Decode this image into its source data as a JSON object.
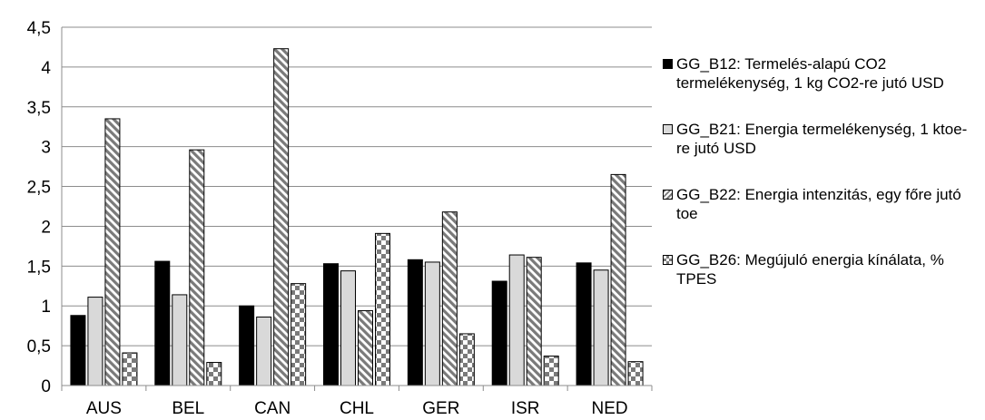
{
  "chart_data": {
    "type": "bar",
    "categories": [
      "AUS",
      "BEL",
      "CAN",
      "CHL",
      "GER",
      "ISR",
      "NED"
    ],
    "series": [
      {
        "name": "GG_B12: Termelés-alapú CO2 termelékenység, 1 kg CO2-re jutó USD",
        "values": [
          0.88,
          1.56,
          1.0,
          1.53,
          1.58,
          1.31,
          1.54
        ],
        "pattern": "solid",
        "color": "#000000"
      },
      {
        "name": "GG_B21: Energia termelékenység, 1 ktoe-re jutó USD",
        "values": [
          1.11,
          1.14,
          0.86,
          1.44,
          1.55,
          1.64,
          1.45
        ],
        "pattern": "solid",
        "color": "#d9d9d9"
      },
      {
        "name": "GG_B22: Energia intenzitás, egy főre jutó toe",
        "values": [
          3.35,
          2.96,
          4.23,
          0.94,
          2.18,
          1.61,
          2.65
        ],
        "pattern": "diagonal",
        "color": "#808080"
      },
      {
        "name": "GG_B26: Megújuló energia kínálata, % TPES",
        "values": [
          0.41,
          0.29,
          1.28,
          1.91,
          0.65,
          0.37,
          0.3
        ],
        "pattern": "checker",
        "color": "#808080"
      }
    ],
    "y_ticks": [
      "0",
      "0,5",
      "1",
      "1,5",
      "2",
      "2,5",
      "3",
      "3,5",
      "4",
      "4,5"
    ],
    "ylim": [
      0,
      4.5
    ],
    "title": "",
    "xlabel": "",
    "ylabel": "",
    "grid": true,
    "legend_position": "right"
  }
}
